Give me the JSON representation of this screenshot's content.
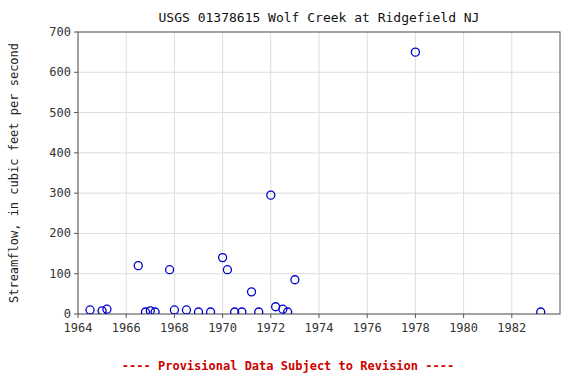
{
  "chart_data": {
    "type": "scatter",
    "title": "USGS 01378615 Wolf Creek at Ridgefield NJ",
    "ylabel": "Streamflow, in cubic feet per second",
    "x": [
      1964.5,
      1965.0,
      1965.2,
      1966.5,
      1966.8,
      1967.0,
      1967.2,
      1967.8,
      1968.0,
      1968.5,
      1969.0,
      1969.5,
      1970.0,
      1970.2,
      1970.5,
      1970.8,
      1971.2,
      1971.5,
      1972.0,
      1972.2,
      1972.5,
      1972.7,
      1973.0,
      1978.0,
      1983.2
    ],
    "values": [
      10,
      8,
      12,
      120,
      5,
      8,
      5,
      110,
      10,
      10,
      5,
      5,
      140,
      110,
      5,
      5,
      55,
      5,
      295,
      18,
      12,
      5,
      85,
      650,
      5
    ],
    "color": "#0000cc",
    "marker": "circle",
    "xlim": [
      1964,
      1984
    ],
    "ylim": [
      0,
      700
    ],
    "xticks": [
      1964,
      1966,
      1968,
      1970,
      1972,
      1974,
      1976,
      1978,
      1980,
      1982
    ],
    "yticks": [
      0,
      100,
      200,
      300,
      400,
      500,
      600,
      700
    ],
    "grid": true,
    "annotations": [
      {
        "text": "---- Provisional Data Subject to Revision ----",
        "color": "#cc0000"
      }
    ]
  }
}
